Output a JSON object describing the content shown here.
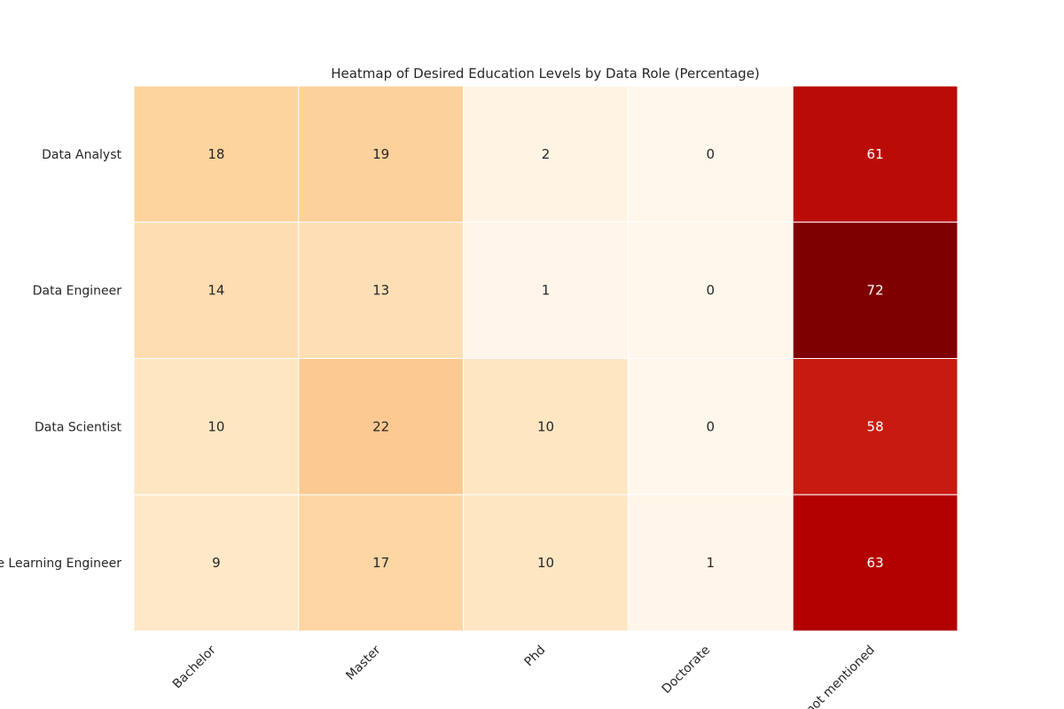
{
  "chart_data": {
    "type": "heatmap",
    "title": "Heatmap of Desired Education Levels by Data Role (Percentage)",
    "xlabel": "",
    "ylabel": "",
    "x_categories": [
      "Bachelor",
      "Master",
      "Phd",
      "Doctorate",
      "not mentioned"
    ],
    "y_categories": [
      "Data Analyst",
      "Data Engineer",
      "Data Scientist",
      "Machine Learning Engineer"
    ],
    "values": [
      [
        18,
        19,
        2,
        0,
        61
      ],
      [
        14,
        13,
        1,
        0,
        72
      ],
      [
        10,
        22,
        10,
        0,
        58
      ],
      [
        9,
        17,
        10,
        1,
        63
      ]
    ],
    "value_range": [
      0,
      72
    ],
    "annotated": true,
    "colorbar": false,
    "colors": {
      "scale": [
        "#fff7ec",
        "#fee8c8",
        "#fdd49e",
        "#fdbb84",
        "#fc8d59",
        "#ef6548",
        "#d7301f",
        "#b30000",
        "#7f0000"
      ],
      "cell_border": "#ffffff",
      "text_dark": "#262626",
      "text_light": "#ffffff"
    }
  }
}
